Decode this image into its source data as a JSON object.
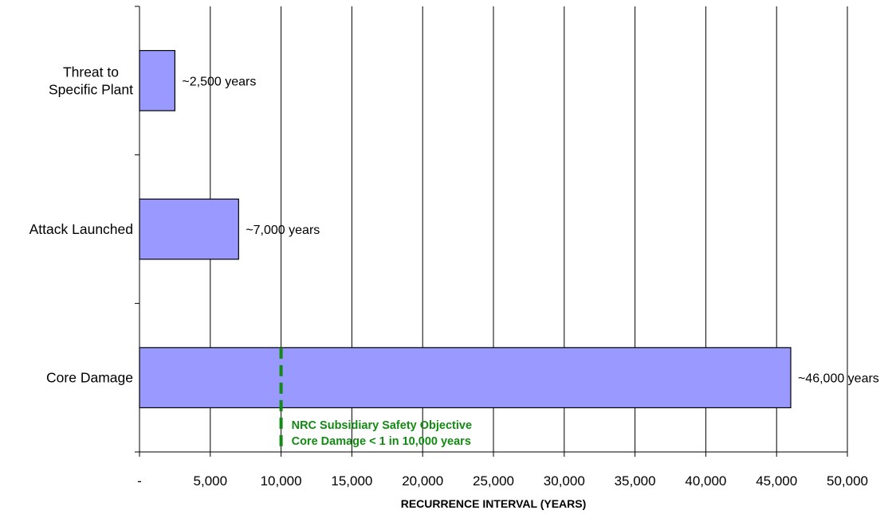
{
  "chart_data": {
    "type": "bar",
    "orientation": "horizontal",
    "categories": [
      "Threat to\nSpecific Plant",
      "Attack Launched",
      "Core Damage"
    ],
    "values": [
      2500,
      7000,
      46000
    ],
    "data_labels": [
      "~2,500 years",
      "~7,000 years",
      "~46,000 years"
    ],
    "xlabel": "RECURRENCE INTERVAL (YEARS)",
    "ylabel": "",
    "xlim": [
      0,
      50000
    ],
    "xticks": [
      0,
      5000,
      10000,
      15000,
      20000,
      25000,
      30000,
      35000,
      40000,
      45000,
      50000
    ],
    "xtick_labels": [
      "-",
      "5,000",
      "10,000",
      "15,000",
      "20,000",
      "25,000",
      "30,000",
      "35,000",
      "40,000",
      "45,000",
      "50,000"
    ],
    "grid": "vertical",
    "legend": "none",
    "reference_line": {
      "x": 10000,
      "style": "dashed",
      "color": "#138a13",
      "label_lines": [
        "NRC Subsidiary Safety Objective",
        "Core Damage < 1 in 10,000 years"
      ]
    },
    "colors": {
      "bar_fill": "#9999ff",
      "bar_stroke": "#000000",
      "grid": "#000000"
    }
  }
}
